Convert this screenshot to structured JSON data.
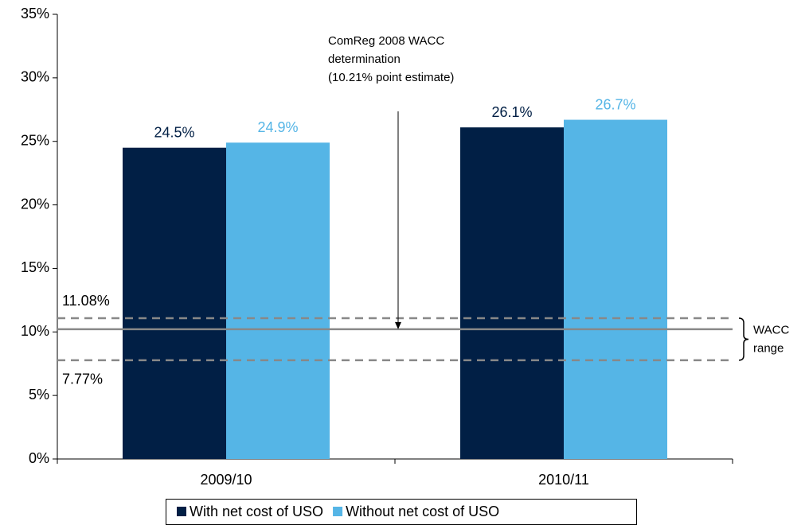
{
  "chart_data": {
    "type": "bar",
    "categories": [
      "2009/10",
      "2010/11"
    ],
    "series": [
      {
        "name": "With net cost of USO",
        "color": "#011f45",
        "values": [
          24.5,
          26.1
        ],
        "value_labels": [
          "24.5%",
          "26.1%"
        ],
        "label_color": "#011f45"
      },
      {
        "name": "Without net cost of USO",
        "color": "#55b5e6",
        "values": [
          24.9,
          26.7
        ],
        "value_labels": [
          "24.9%",
          "26.7%"
        ],
        "label_color": "#55b5e6"
      }
    ],
    "ylim": [
      0,
      35
    ],
    "yticks": [
      {
        "value": 0,
        "label": "0%"
      },
      {
        "value": 5,
        "label": "5%"
      },
      {
        "value": 10,
        "label": "10%"
      },
      {
        "value": 15,
        "label": "15%"
      },
      {
        "value": 20,
        "label": "20%"
      },
      {
        "value": 25,
        "label": "25%"
      },
      {
        "value": 30,
        "label": "30%"
      },
      {
        "value": 35,
        "label": "35%"
      }
    ],
    "reference_lines": [
      {
        "value": 11.08,
        "label": "11.08%",
        "style": "dashed"
      },
      {
        "value": 10.21,
        "style": "solid"
      },
      {
        "value": 7.77,
        "label": "7.77%",
        "style": "dashed"
      }
    ],
    "annotation": [
      "ComReg 2008 WACC",
      "determination",
      "(10.21% point estimate)"
    ],
    "range_label": [
      "WACC",
      "range"
    ],
    "legend": "bottom"
  }
}
